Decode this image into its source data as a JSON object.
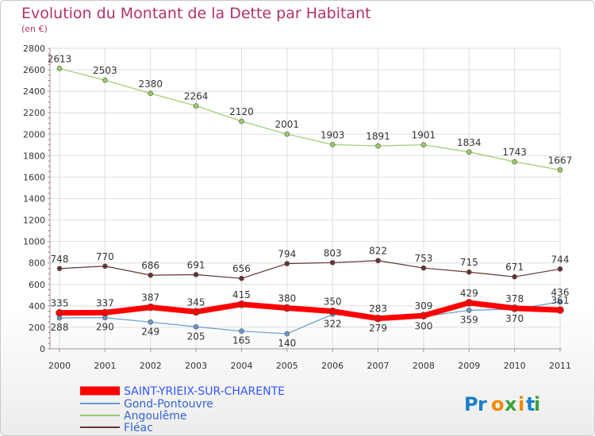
{
  "chart_data": {
    "type": "line",
    "title": "Evolution du Montant de la Dette par Habitant",
    "subtitle": "(en €)",
    "x": [
      "2000",
      "2001",
      "2002",
      "2003",
      "2004",
      "2005",
      "2006",
      "2007",
      "2008",
      "2009",
      "2010",
      "2011"
    ],
    "ylim": [
      0,
      2800
    ],
    "yticks": [
      0,
      200,
      400,
      600,
      800,
      1000,
      1200,
      1400,
      1600,
      1800,
      2000,
      2200,
      2400,
      2600,
      2800
    ],
    "grid": true,
    "legend_position": "bottom-left",
    "series": [
      {
        "name": "SAINT-YRIEIX-SUR-CHARENTE",
        "color": "#ff0000",
        "values": [
          335,
          337,
          387,
          345,
          415,
          380,
          350,
          283,
          309,
          429,
          378,
          361
        ],
        "labels": [
          "335",
          "337",
          "387",
          "345",
          "415",
          "380",
          "350",
          "283",
          "309",
          "429",
          "378",
          "361"
        ]
      },
      {
        "name": "Gond-Pontouvre",
        "color": "#6699cc",
        "values": [
          288,
          290,
          249,
          205,
          165,
          140,
          322,
          279,
          300,
          359,
          370,
          436
        ],
        "labels": [
          "288",
          "290",
          "249",
          "205",
          "165",
          "140",
          "322",
          "279",
          "300",
          "359",
          "370",
          "436"
        ]
      },
      {
        "name": "Angoulême",
        "color": "#99cc66",
        "values": [
          2613,
          2503,
          2380,
          2264,
          2120,
          2001,
          1903,
          1891,
          1901,
          1834,
          1743,
          1667
        ],
        "labels": [
          "2613",
          "2503",
          "2380",
          "2264",
          "2120",
          "2001",
          "1903",
          "1891",
          "1901",
          "1834",
          "1743",
          "1667"
        ]
      },
      {
        "name": "Fléac",
        "color": "#663333",
        "values": [
          748,
          770,
          686,
          691,
          656,
          794,
          803,
          822,
          753,
          715,
          671,
          744
        ],
        "labels": [
          "748",
          "770",
          "686",
          "691",
          "656",
          "794",
          "803",
          "822",
          "753",
          "715",
          "671",
          "744"
        ]
      }
    ]
  },
  "logo": {
    "text": "Proxiti"
  }
}
